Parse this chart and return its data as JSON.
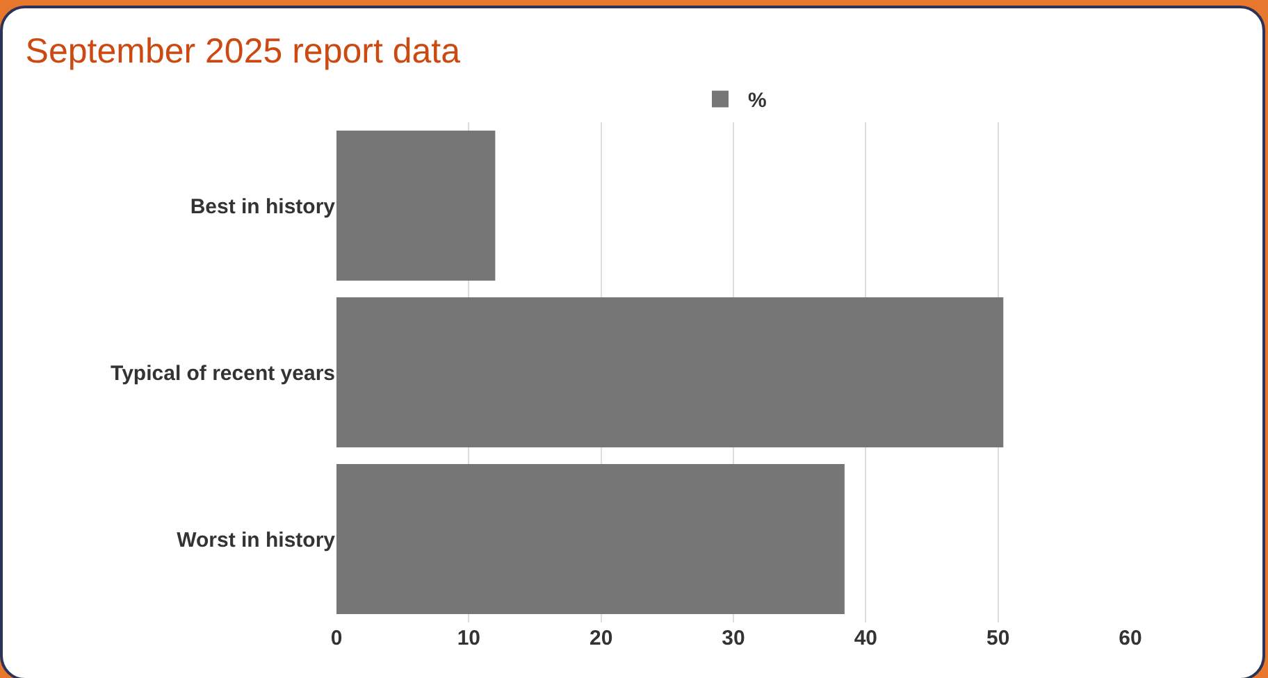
{
  "chart_data": {
    "type": "bar",
    "orientation": "horizontal",
    "title": "September 2025 report data",
    "categories": [
      "Best in history",
      "Typical of recent years",
      "Worst in history"
    ],
    "series": [
      {
        "name": "%",
        "color": "#767676",
        "values": [
          12,
          50.4,
          38.4
        ]
      }
    ],
    "xlim": [
      0,
      60
    ],
    "xticks": [
      0,
      10,
      20,
      30,
      40,
      50,
      60
    ],
    "grid": "x",
    "legend": "top"
  }
}
